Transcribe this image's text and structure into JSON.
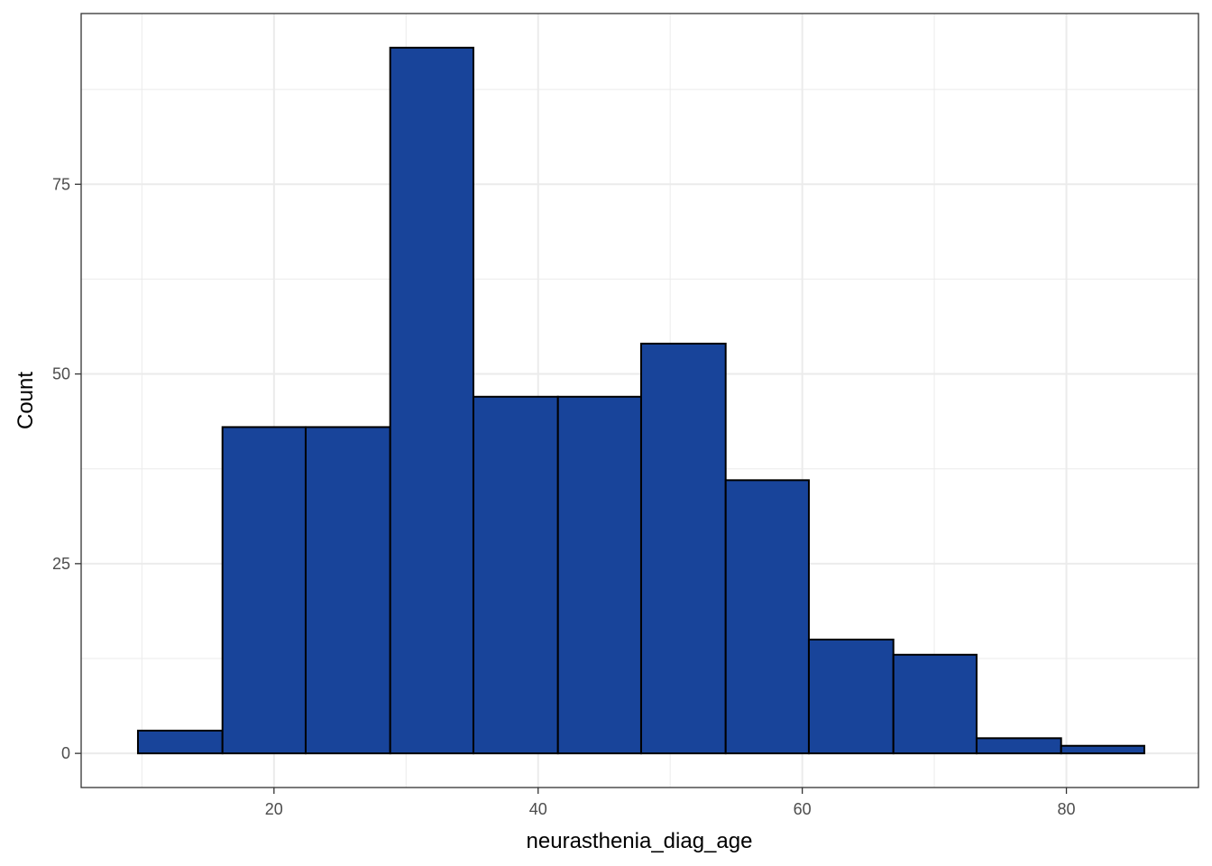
{
  "chart_data": {
    "type": "bar",
    "subtype": "histogram",
    "xlabel": "neurasthenia_diag_age",
    "ylabel": "Count",
    "xlim": [
      5.4,
      90
    ],
    "ylim": [
      -4.5,
      97.5
    ],
    "x_ticks": [
      20,
      40,
      60,
      80
    ],
    "y_ticks": [
      0,
      25,
      50,
      75
    ],
    "x_minor_ticks": [
      10,
      30,
      50,
      70,
      90
    ],
    "y_minor_ticks": [
      12.5,
      37.5,
      62.5,
      87.5
    ],
    "grid": true,
    "bin_edges": [
      9.7,
      16.1,
      22.4,
      28.8,
      35.1,
      41.5,
      47.8,
      54.2,
      60.5,
      66.9,
      73.2,
      79.6,
      85.9
    ],
    "values": [
      3,
      43,
      43,
      93,
      47,
      47,
      54,
      36,
      15,
      13,
      2,
      1
    ],
    "bar_fill": "#18449a",
    "bar_stroke": "#000000"
  }
}
